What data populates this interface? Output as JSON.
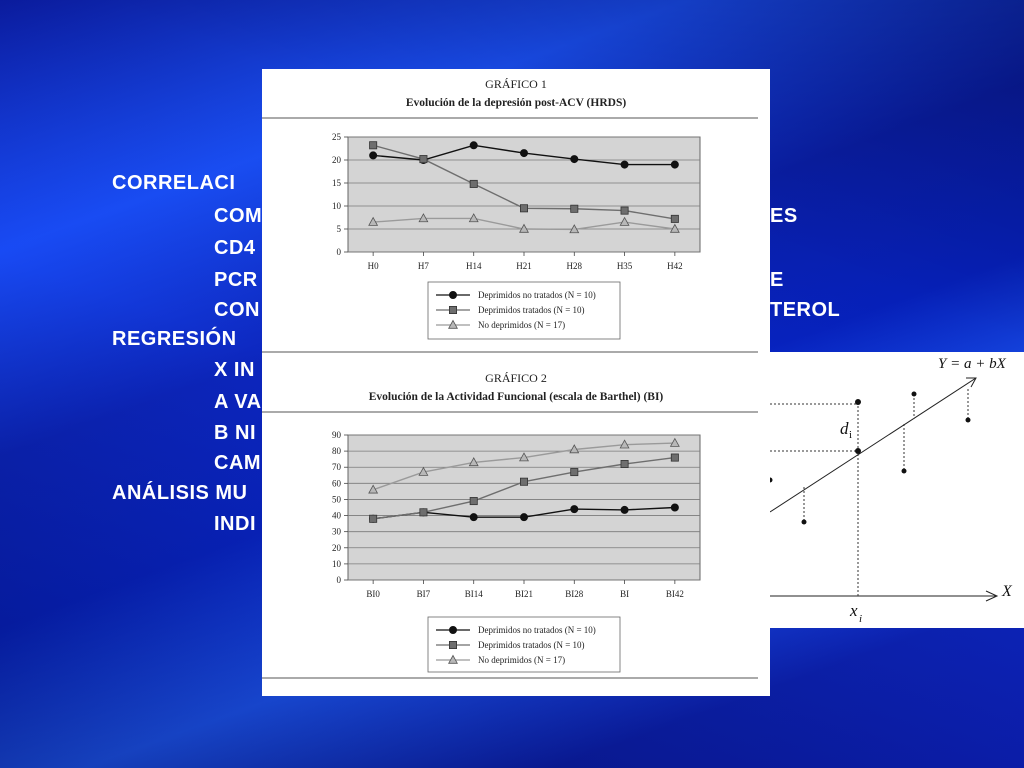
{
  "slide": {
    "outline": [
      {
        "text": "CORRELACI",
        "level": 1
      },
      {
        "text": "COM",
        "level": 2,
        "tail": "ES"
      },
      {
        "text": "CD4",
        "level": 2
      },
      {
        "text": "PCR",
        "level": 2,
        "tail": "E"
      },
      {
        "text": "CON",
        "level": 2,
        "tail": "TEROL"
      },
      {
        "text": "REGRESIÓN",
        "level": 1
      },
      {
        "text": "X IN",
        "level": 2
      },
      {
        "text": "A VA",
        "level": 2
      },
      {
        "text": "B NI",
        "level": 2
      },
      {
        "text": "CAM",
        "level": 2
      },
      {
        "text": "ANÁLISIS MU",
        "level": 1
      },
      {
        "text": "INDI",
        "level": 2
      }
    ]
  },
  "chart_data": [
    {
      "type": "line",
      "label": "GRÁFICO 1",
      "title": "Evolución de la depresión post-ACV (HRDS)",
      "categories": [
        "H0",
        "H7",
        "H14",
        "H21",
        "H28",
        "H35",
        "H42"
      ],
      "ylim": [
        0,
        25
      ],
      "yticks": [
        0,
        5,
        10,
        15,
        20,
        25
      ],
      "grid": true,
      "legend_position": "bottom-center",
      "series": [
        {
          "name": "Deprimidos no tratados (N = 10)",
          "marker": "circle",
          "color": "#111111",
          "values": [
            21,
            20,
            23.2,
            21.5,
            20.2,
            19,
            19
          ]
        },
        {
          "name": "Deprimidos tratados (N = 10)",
          "marker": "square",
          "color": "#6e6e6e",
          "values": [
            23.2,
            20.2,
            14.8,
            9.5,
            9.4,
            9,
            7.2
          ]
        },
        {
          "name": "No deprimidos (N = 17)",
          "marker": "triangle",
          "color": "#9a9a9a",
          "values": [
            6.5,
            7.3,
            7.3,
            5,
            4.9,
            6.5,
            5
          ]
        }
      ]
    },
    {
      "type": "line",
      "label": "GRÁFICO 2",
      "title": "Evolución de la Actividad Funcional (escala de Barthel) (BI)",
      "categories": [
        "BI0",
        "BI7",
        "BI14",
        "BI21",
        "BI28",
        "BI",
        "BI42"
      ],
      "ylim": [
        0,
        90
      ],
      "yticks": [
        0,
        10,
        20,
        30,
        40,
        50,
        60,
        70,
        80,
        90
      ],
      "grid": true,
      "legend_position": "bottom-center",
      "series": [
        {
          "name": "Deprimidos no tratados (N = 10)",
          "marker": "circle",
          "color": "#111111",
          "values": [
            38,
            42,
            39,
            39,
            44,
            43.5,
            45
          ]
        },
        {
          "name": "Deprimidos tratados (N = 10)",
          "marker": "square",
          "color": "#6e6e6e",
          "values": [
            38,
            42,
            49,
            61,
            67,
            72,
            76
          ]
        },
        {
          "name": "No deprimidos (N = 17)",
          "marker": "triangle",
          "color": "#9a9a9a",
          "values": [
            56,
            67,
            73,
            76,
            81,
            84,
            85
          ]
        }
      ]
    }
  ],
  "regression": {
    "equation": "Y = a + bX",
    "d_label": "d",
    "d_sub": "i",
    "x_label": "x",
    "x_sub": "i",
    "axis_label": "X"
  }
}
